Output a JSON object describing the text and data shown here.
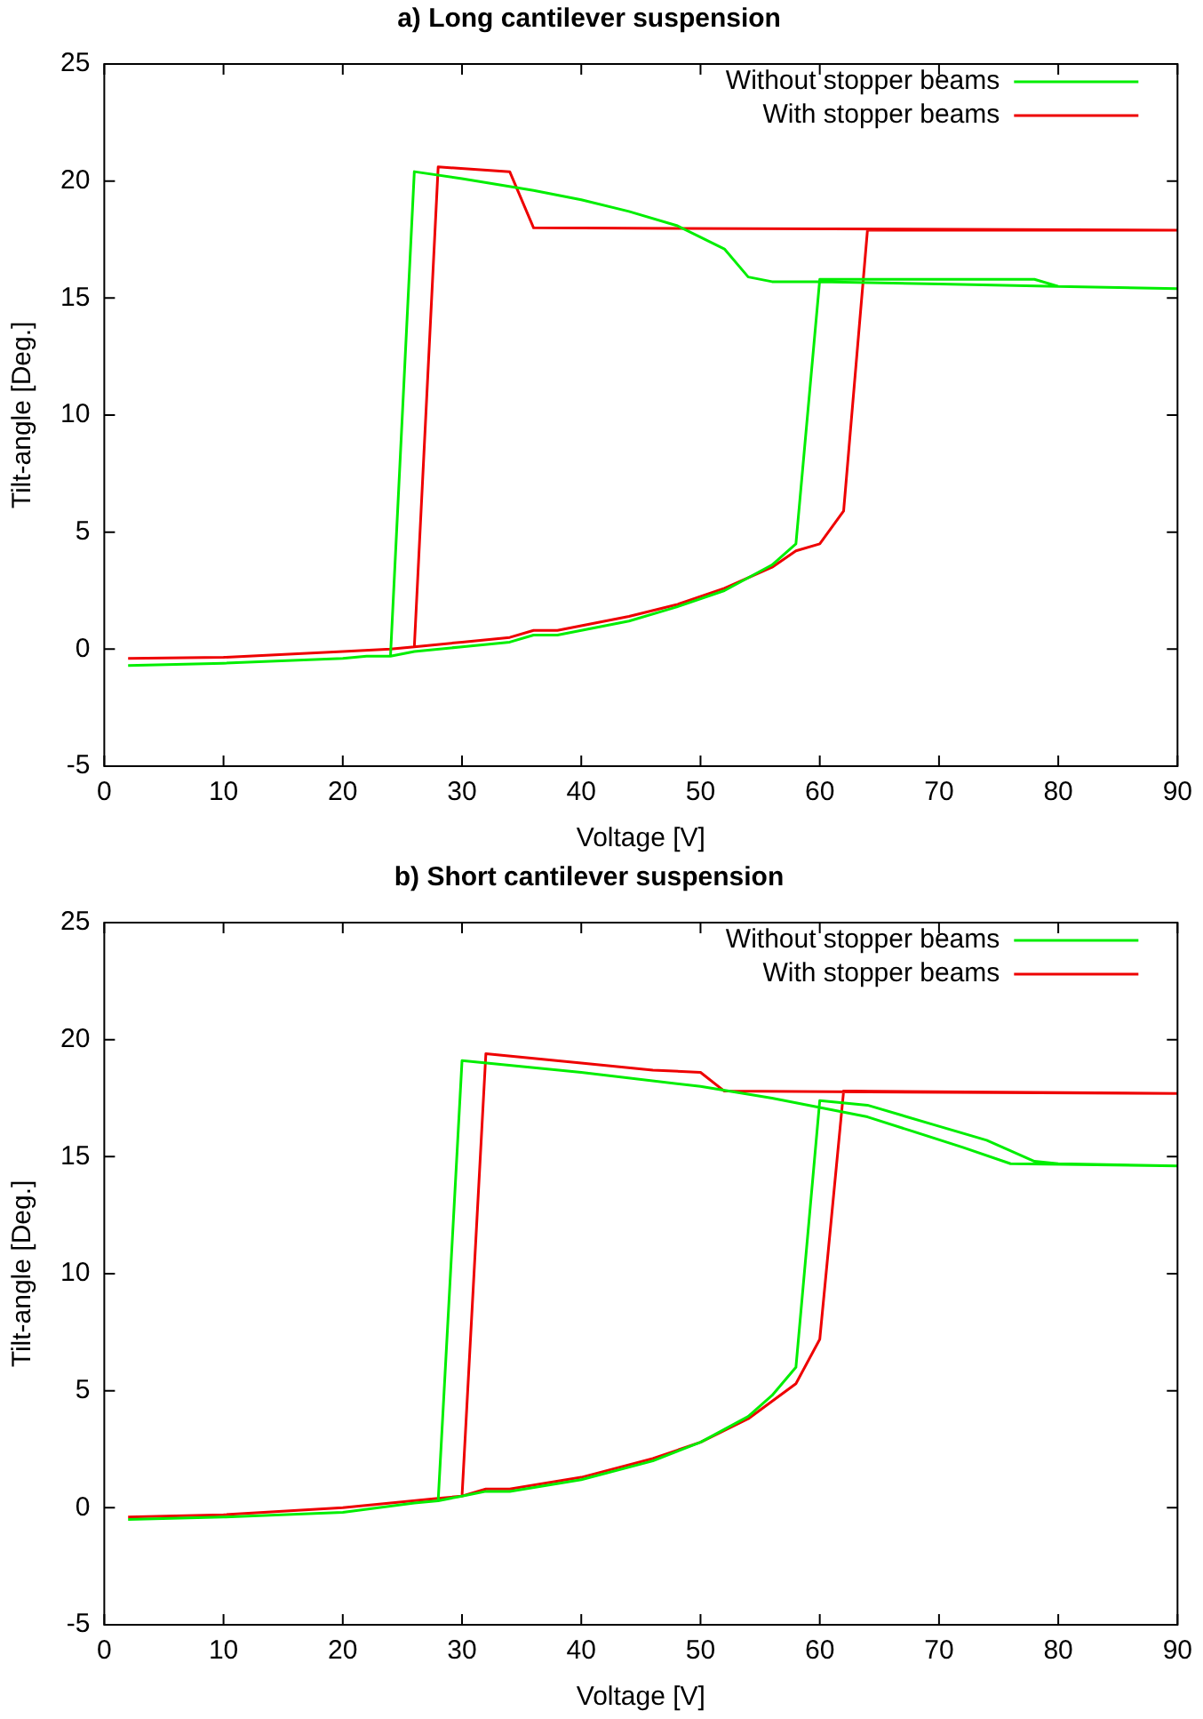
{
  "chart_data": [
    {
      "type": "line",
      "title": "a) Long cantilever suspension",
      "xlabel": "Voltage [V]",
      "ylabel": "Tilt-angle [Deg.]",
      "xlim": [
        0,
        90
      ],
      "ylim": [
        -5,
        25
      ],
      "xticks": [
        0,
        10,
        20,
        30,
        40,
        50,
        60,
        70,
        80,
        90
      ],
      "yticks": [
        -5,
        0,
        5,
        10,
        15,
        20,
        25
      ],
      "legend": "top right",
      "series": [
        {
          "name": "Without stopper beams",
          "color": "#00ee00",
          "x": [
            2,
            10,
            20,
            22,
            24,
            26,
            30,
            34,
            36,
            38,
            40,
            44,
            48,
            52,
            56,
            58,
            60,
            70,
            78,
            80,
            90,
            80,
            70,
            60,
            56,
            54,
            52,
            50,
            48,
            44,
            40,
            36,
            30,
            26,
            24
          ],
          "values": [
            -0.7,
            -0.6,
            -0.4,
            -0.3,
            -0.3,
            -0.1,
            0.1,
            0.3,
            0.6,
            0.6,
            0.8,
            1.2,
            1.8,
            2.5,
            3.6,
            4.5,
            15.8,
            15.8,
            15.8,
            15.5,
            15.4,
            15.5,
            15.6,
            15.7,
            15.7,
            15.9,
            17.1,
            17.6,
            18.1,
            18.7,
            19.2,
            19.6,
            20.1,
            20.4,
            -0.3
          ]
        },
        {
          "name": "With stopper beams",
          "color": "#ee0000",
          "x": [
            2,
            10,
            20,
            24,
            26,
            30,
            34,
            36,
            38,
            40,
            44,
            48,
            52,
            56,
            58,
            60,
            62,
            64,
            90,
            36,
            34,
            28,
            26
          ],
          "values": [
            -0.4,
            -0.35,
            -0.1,
            0,
            0.1,
            0.3,
            0.5,
            0.8,
            0.8,
            1,
            1.4,
            1.9,
            2.6,
            3.5,
            4.2,
            4.5,
            5.9,
            17.9,
            17.9,
            18,
            20.4,
            20.6,
            0.1
          ]
        }
      ]
    },
    {
      "type": "line",
      "title": "b) Short cantilever suspension",
      "xlabel": "Voltage [V]",
      "ylabel": "Tilt-angle [Deg.]",
      "xlim": [
        0,
        90
      ],
      "ylim": [
        -5,
        25
      ],
      "xticks": [
        0,
        10,
        20,
        30,
        40,
        50,
        60,
        70,
        80,
        90
      ],
      "yticks": [
        -5,
        0,
        5,
        10,
        15,
        20,
        25
      ],
      "legend": "top right",
      "series": [
        {
          "name": "Without stopper beams",
          "color": "#00ee00",
          "x": [
            2,
            10,
            20,
            26,
            28,
            30,
            32,
            34,
            40,
            46,
            50,
            54,
            56,
            58,
            60,
            64,
            70,
            74,
            78,
            80,
            90,
            76,
            72,
            64,
            56,
            50,
            40,
            30,
            28
          ],
          "values": [
            -0.5,
            -0.4,
            -0.2,
            0.2,
            0.3,
            0.5,
            0.7,
            0.7,
            1.2,
            2,
            2.8,
            3.9,
            4.8,
            6,
            17.4,
            17.2,
            16.3,
            15.7,
            14.8,
            14.7,
            14.6,
            14.7,
            15.4,
            16.7,
            17.5,
            18,
            18.6,
            19.1,
            0.3
          ]
        },
        {
          "name": "With stopper beams",
          "color": "#ee0000",
          "x": [
            2,
            10,
            20,
            28,
            30,
            32,
            34,
            40,
            46,
            50,
            54,
            58,
            60,
            62,
            90,
            52,
            50,
            46,
            40,
            32,
            30
          ],
          "values": [
            -0.4,
            -0.3,
            0,
            0.4,
            0.5,
            0.8,
            0.8,
            1.3,
            2.1,
            2.8,
            3.8,
            5.3,
            7.2,
            17.8,
            17.7,
            17.8,
            18.6,
            18.7,
            19,
            19.4,
            0.5
          ]
        }
      ]
    }
  ]
}
